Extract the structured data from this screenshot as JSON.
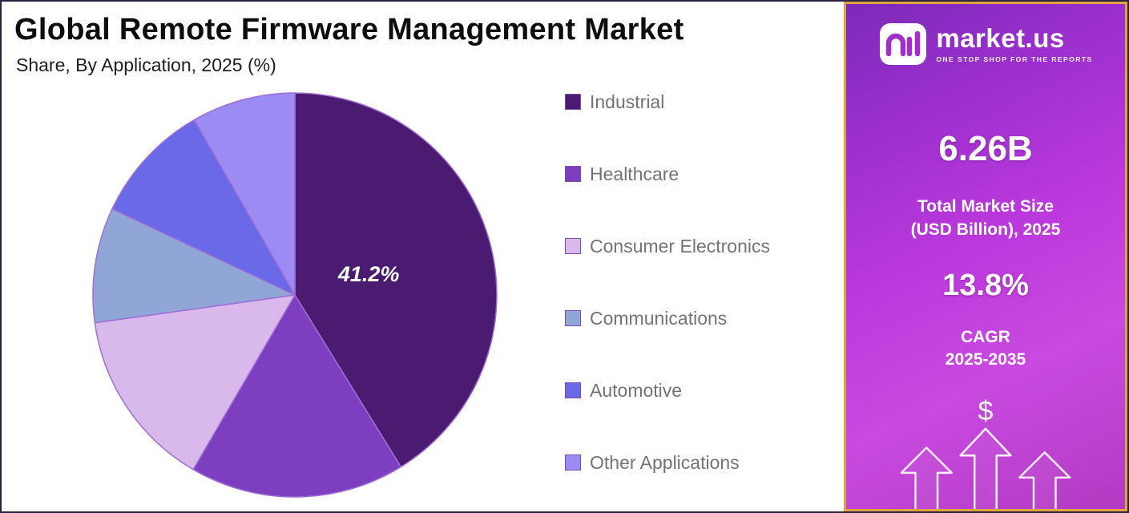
{
  "header": {
    "title": "Global Remote Firmware Management Market",
    "subtitle": "Share, By Application, 2025 (%)"
  },
  "chart_data": {
    "type": "pie",
    "title": "Global Remote Firmware Management Market Share, By Application, 2025 (%)",
    "unit": "%",
    "start_angle_deg": -90,
    "direction": "clockwise",
    "legend_position": "right",
    "slices": [
      {
        "name": "Industrial",
        "value": 41.2,
        "color": "#4a1b70",
        "label": "41.2%"
      },
      {
        "name": "Healthcare",
        "value": 17.2,
        "color": "#7d3ec0",
        "label": ""
      },
      {
        "name": "Consumer Electronics",
        "value": 14.4,
        "color": "#d9b8ec",
        "label": ""
      },
      {
        "name": "Communications",
        "value": 9.2,
        "color": "#8fa6d6",
        "label": ""
      },
      {
        "name": "Automotive",
        "value": 9.7,
        "color": "#6a6ae8",
        "label": ""
      },
      {
        "name": "Other Applications",
        "value": 8.3,
        "color": "#9b8bf2",
        "label": ""
      }
    ],
    "slice_stroke": "#9d6fd6"
  },
  "sidebar": {
    "brand": {
      "name": "market.us",
      "tagline": "ONE STOP SHOP FOR THE REPORTS"
    },
    "market_size": {
      "value": "6.26B",
      "label_line1": "Total Market Size",
      "label_line2": "(USD Billion), 2025"
    },
    "cagr": {
      "value": "13.8%",
      "label_line1": "CAGR",
      "label_line2": "2025-2035"
    },
    "dollar_symbol": "$",
    "colors": {
      "panel_border": "#e2a23d",
      "panel_gradient_start": "#7b2ab8",
      "panel_gradient_end": "#b23bc2"
    }
  }
}
